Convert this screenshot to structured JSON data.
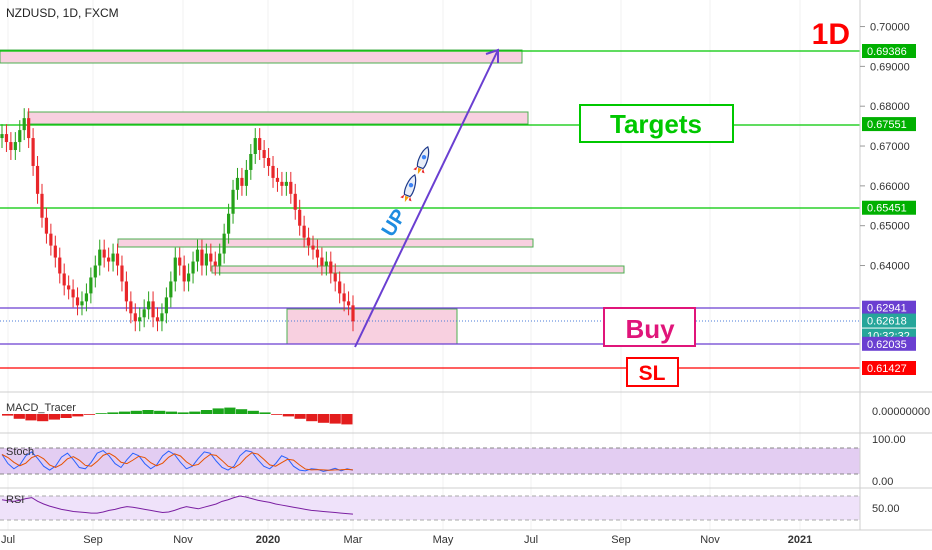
{
  "symbol": "NZDUSD, 1D, FXCM",
  "timeframe_badge": "1D",
  "annotations": {
    "targets": "Targets",
    "buy": "Buy",
    "sl": "SL",
    "up": "UP"
  },
  "colors": {
    "target_line": "#00c800",
    "sl_line": "#ff0000",
    "buy_line": "#6a3fd1",
    "up_candle": "#26a11a",
    "down_candle": "#e8262a",
    "zone_fill": "#f8d0e0",
    "buy_box_border": "#e0157a",
    "accent_red": "#ff0000",
    "stoch_fill": "#e3cdf2",
    "rsi_fill": "#efe2fa"
  },
  "price_axis": {
    "ticks": [
      "0.70000",
      "0.69000",
      "0.68000",
      "0.67000",
      "0.66000",
      "0.65000",
      "0.64000"
    ],
    "level_labels": [
      {
        "value": "0.69386",
        "kind": "target"
      },
      {
        "value": "0.67551",
        "kind": "target"
      },
      {
        "value": "0.65451",
        "kind": "target"
      },
      {
        "value": "0.62941",
        "kind": "buy"
      },
      {
        "value": "0.62618",
        "kind": "last"
      },
      {
        "value": "10:32:32",
        "kind": "timer"
      },
      {
        "value": "0.62035",
        "kind": "buy"
      },
      {
        "value": "0.61427",
        "kind": "sl"
      }
    ]
  },
  "panes": {
    "macd": {
      "label": "MACD_Tracer",
      "tick": "0.00000000"
    },
    "stoch": {
      "label": "Stoch",
      "ticks": [
        "100.00",
        "0.00"
      ]
    },
    "rsi": {
      "label": "RSI",
      "tick": "50.00"
    }
  },
  "time_axis": [
    "Jul",
    "Sep",
    "Nov",
    "2020",
    "Mar",
    "May",
    "Jul",
    "Sep",
    "Nov",
    "2021"
  ],
  "chart_data": {
    "type": "candlestick",
    "title": "NZDUSD, 1D, FXCM",
    "ylim": [
      0.6125,
      0.7035
    ],
    "horizontal_levels": [
      {
        "value": 0.69386,
        "role": "target"
      },
      {
        "value": 0.67551,
        "role": "target"
      },
      {
        "value": 0.65451,
        "role": "target"
      },
      {
        "value": 0.62941,
        "role": "buy_zone_top"
      },
      {
        "value": 0.62035,
        "role": "buy_zone_bottom"
      },
      {
        "value": 0.61427,
        "role": "stop_loss"
      }
    ],
    "last_price": 0.62618,
    "price_path": [
      0.673,
      0.671,
      0.669,
      0.671,
      0.674,
      0.677,
      0.672,
      0.665,
      0.658,
      0.652,
      0.648,
      0.645,
      0.642,
      0.638,
      0.635,
      0.634,
      0.632,
      0.63,
      0.631,
      0.633,
      0.637,
      0.64,
      0.644,
      0.642,
      0.641,
      0.643,
      0.64,
      0.636,
      0.631,
      0.628,
      0.626,
      0.627,
      0.629,
      0.631,
      0.627,
      0.626,
      0.628,
      0.632,
      0.636,
      0.642,
      0.64,
      0.636,
      0.638,
      0.641,
      0.644,
      0.64,
      0.643,
      0.641,
      0.64,
      0.643,
      0.648,
      0.653,
      0.659,
      0.662,
      0.66,
      0.664,
      0.668,
      0.672,
      0.669,
      0.667,
      0.665,
      0.662,
      0.661,
      0.66,
      0.661,
      0.658,
      0.654,
      0.65,
      0.647,
      0.645,
      0.644,
      0.642,
      0.64,
      0.641,
      0.638,
      0.636,
      0.633,
      0.631,
      0.63,
      0.626
    ],
    "macd_hist": [
      -0.2,
      -0.6,
      -0.8,
      -0.9,
      -0.7,
      -0.5,
      -0.3,
      -0.1,
      0.1,
      0.2,
      0.3,
      0.4,
      0.5,
      0.4,
      0.3,
      0.2,
      0.3,
      0.5,
      0.7,
      0.8,
      0.6,
      0.4,
      0.2,
      -0.1,
      -0.3,
      -0.6,
      -0.9,
      -1.1,
      -1.2,
      -1.3
    ],
    "stoch_k": [
      75,
      40,
      20,
      35,
      70,
      85,
      60,
      30,
      15,
      30,
      65,
      80,
      55,
      25,
      20,
      45,
      80,
      90,
      70,
      40,
      25,
      55,
      80,
      70,
      40,
      20,
      35,
      70,
      88,
      75,
      45,
      20,
      30,
      60,
      85,
      80,
      50,
      25,
      15,
      30,
      70,
      90,
      85,
      55,
      30,
      20,
      40,
      70,
      60,
      30,
      15,
      12,
      20,
      18,
      10,
      15,
      22,
      12,
      20,
      15
    ],
    "rsi": [
      58,
      56,
      55,
      57,
      60,
      62,
      55,
      50,
      46,
      43,
      40,
      38,
      36,
      35,
      34,
      33,
      33,
      35,
      38,
      40,
      43,
      45,
      44,
      42,
      40,
      38,
      36,
      34,
      35,
      38,
      42,
      45,
      43,
      41,
      44,
      47,
      50,
      55,
      58,
      62,
      65,
      63,
      60,
      57,
      55,
      53,
      50,
      48,
      46,
      44,
      42,
      40,
      38,
      37,
      36,
      35,
      34,
      33,
      32,
      31
    ],
    "stoch_ylim": [
      0,
      100
    ],
    "rsi_ylim": [
      20,
      80
    ]
  }
}
